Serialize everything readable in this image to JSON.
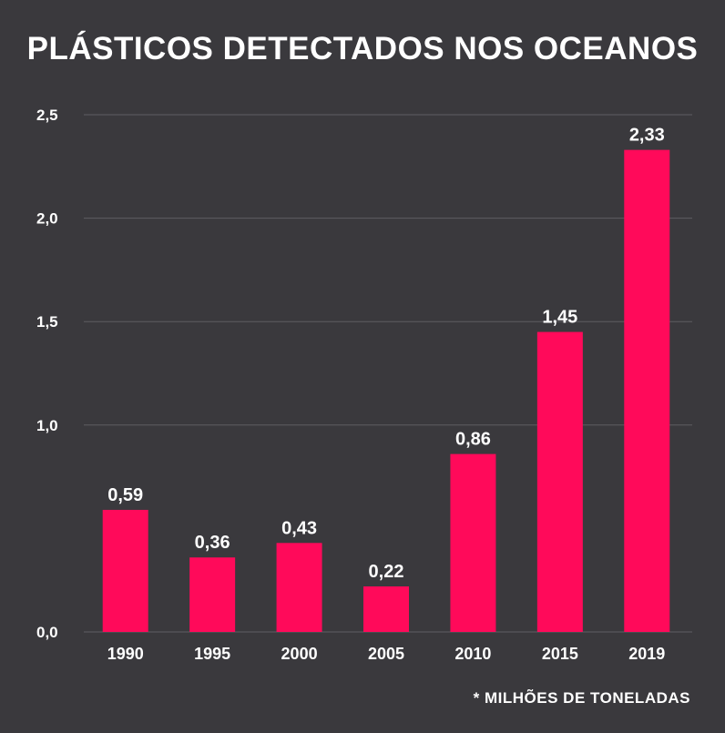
{
  "chart_data": {
    "type": "bar",
    "title": "PLÁSTICOS DETECTADOS NOS OCEANOS",
    "categories": [
      "1990",
      "1995",
      "2000",
      "2005",
      "2010",
      "2015",
      "2019"
    ],
    "values": [
      0.59,
      0.36,
      0.43,
      0.22,
      0.86,
      1.45,
      2.33
    ],
    "value_labels": [
      "0,59",
      "0,36",
      "0,43",
      "0,22",
      "0,86",
      "1,45",
      "2,33"
    ],
    "yticks": [
      {
        "value": 0,
        "label": "0,0"
      },
      {
        "value": 1.0,
        "label": "1,0"
      },
      {
        "value": 1.5,
        "label": "1,5"
      },
      {
        "value": 2.0,
        "label": "2,0"
      },
      {
        "value": 2.5,
        "label": "2,5"
      }
    ],
    "ylim": [
      0,
      2.5
    ],
    "grid": true,
    "bar_color": "#ff0a5a",
    "grid_color": "#5e5d62"
  },
  "footnote": "* MILHÕES DE TONELADAS"
}
